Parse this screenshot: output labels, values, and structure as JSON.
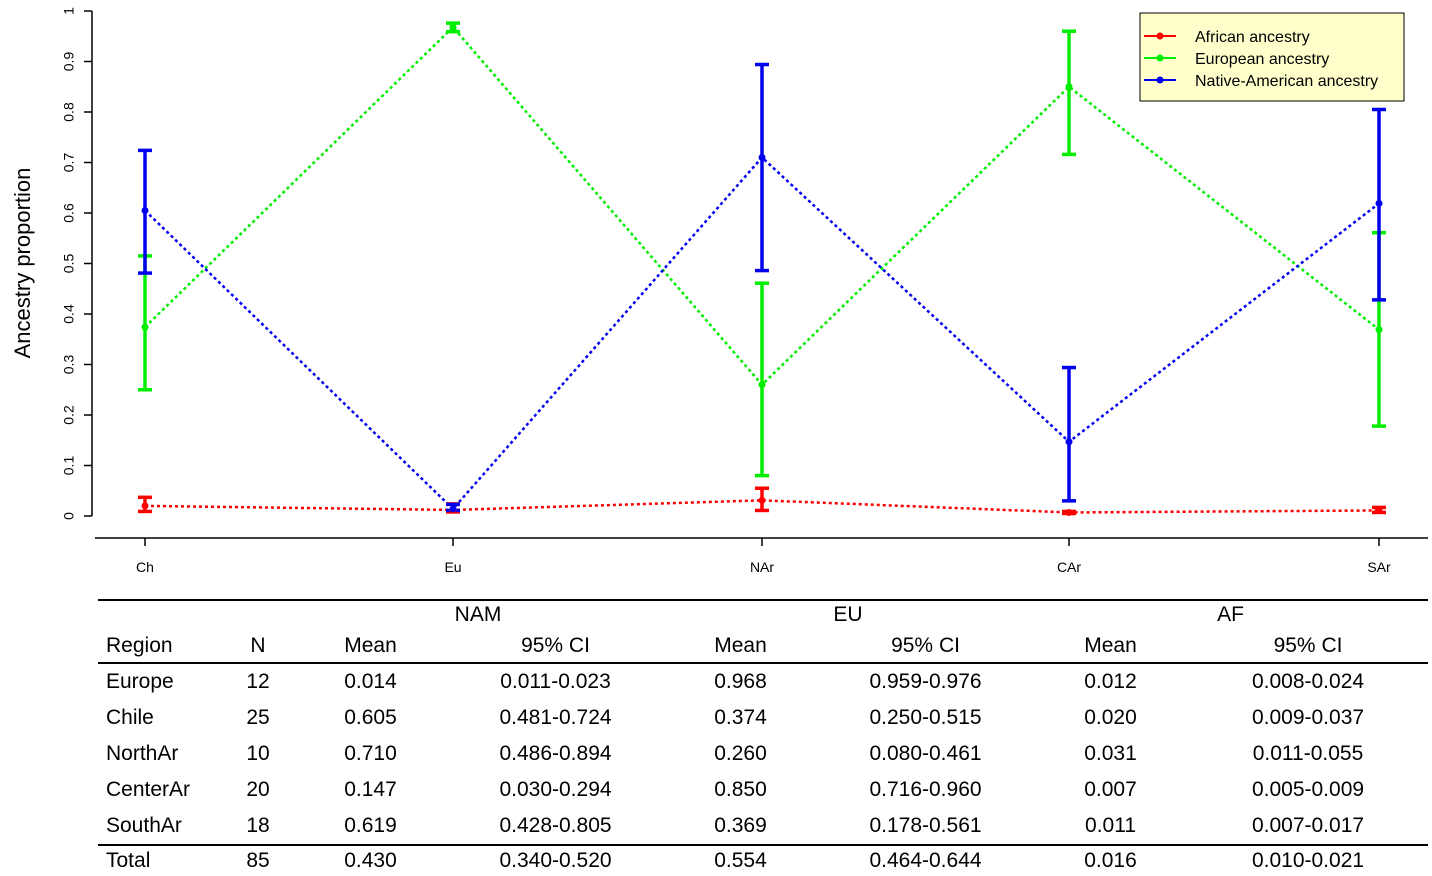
{
  "chart_data": {
    "type": "line",
    "ylabel": "Ancestry proportion",
    "xlabel": "",
    "categories": [
      "Ch",
      "Eu",
      "NAr",
      "CAr",
      "SAr"
    ],
    "ylim": [
      0,
      1
    ],
    "yticks": [
      "0",
      "0.1",
      "0.2",
      "0.3",
      "0.4",
      "0.5",
      "0.6",
      "0.7",
      "0.8",
      "0.9",
      "1"
    ],
    "legend_position": "top-right",
    "grid": false,
    "series": [
      {
        "name": "African ancestry",
        "color": "#ff0000",
        "values": [
          0.02,
          0.012,
          0.031,
          0.007,
          0.011
        ],
        "ci_low": [
          0.009,
          0.008,
          0.011,
          0.005,
          0.007
        ],
        "ci_high": [
          0.037,
          0.024,
          0.055,
          0.009,
          0.017
        ]
      },
      {
        "name": "European ancestry",
        "color": "#00ee00",
        "values": [
          0.374,
          0.968,
          0.26,
          0.85,
          0.369
        ],
        "ci_low": [
          0.25,
          0.959,
          0.08,
          0.716,
          0.178
        ],
        "ci_high": [
          0.515,
          0.976,
          0.461,
          0.96,
          0.561
        ]
      },
      {
        "name": "Native-American ancestry",
        "color": "#0000ee",
        "values": [
          0.605,
          0.014,
          0.71,
          0.147,
          0.619
        ],
        "ci_low": [
          0.481,
          0.011,
          0.486,
          0.03,
          0.428
        ],
        "ci_high": [
          0.724,
          0.023,
          0.894,
          0.294,
          0.805
        ]
      }
    ]
  },
  "table": {
    "groups": [
      "NAM",
      "EU",
      "AF"
    ],
    "headers": [
      "Region",
      "N",
      "Mean",
      "95% CI",
      "Mean",
      "95% CI",
      "Mean",
      "95% CI"
    ],
    "rows": [
      [
        "Europe",
        "12",
        "0.014",
        "0.011-0.023",
        "0.968",
        "0.959-0.976",
        "0.012",
        "0.008-0.024"
      ],
      [
        "Chile",
        "25",
        "0.605",
        "0.481-0.724",
        "0.374",
        "0.250-0.515",
        "0.020",
        "0.009-0.037"
      ],
      [
        "NorthAr",
        "10",
        "0.710",
        "0.486-0.894",
        "0.260",
        "0.080-0.461",
        "0.031",
        "0.011-0.055"
      ],
      [
        "CenterAr",
        "20",
        "0.147",
        "0.030-0.294",
        "0.850",
        "0.716-0.960",
        "0.007",
        "0.005-0.009"
      ],
      [
        "SouthAr",
        "18",
        "0.619",
        "0.428-0.805",
        "0.369",
        "0.178-0.561",
        "0.011",
        "0.007-0.017"
      ]
    ],
    "total": [
      "Total",
      "85",
      "0.430",
      "0.340-0.520",
      "0.554",
      "0.464-0.644",
      "0.016",
      "0.010-0.021"
    ]
  }
}
